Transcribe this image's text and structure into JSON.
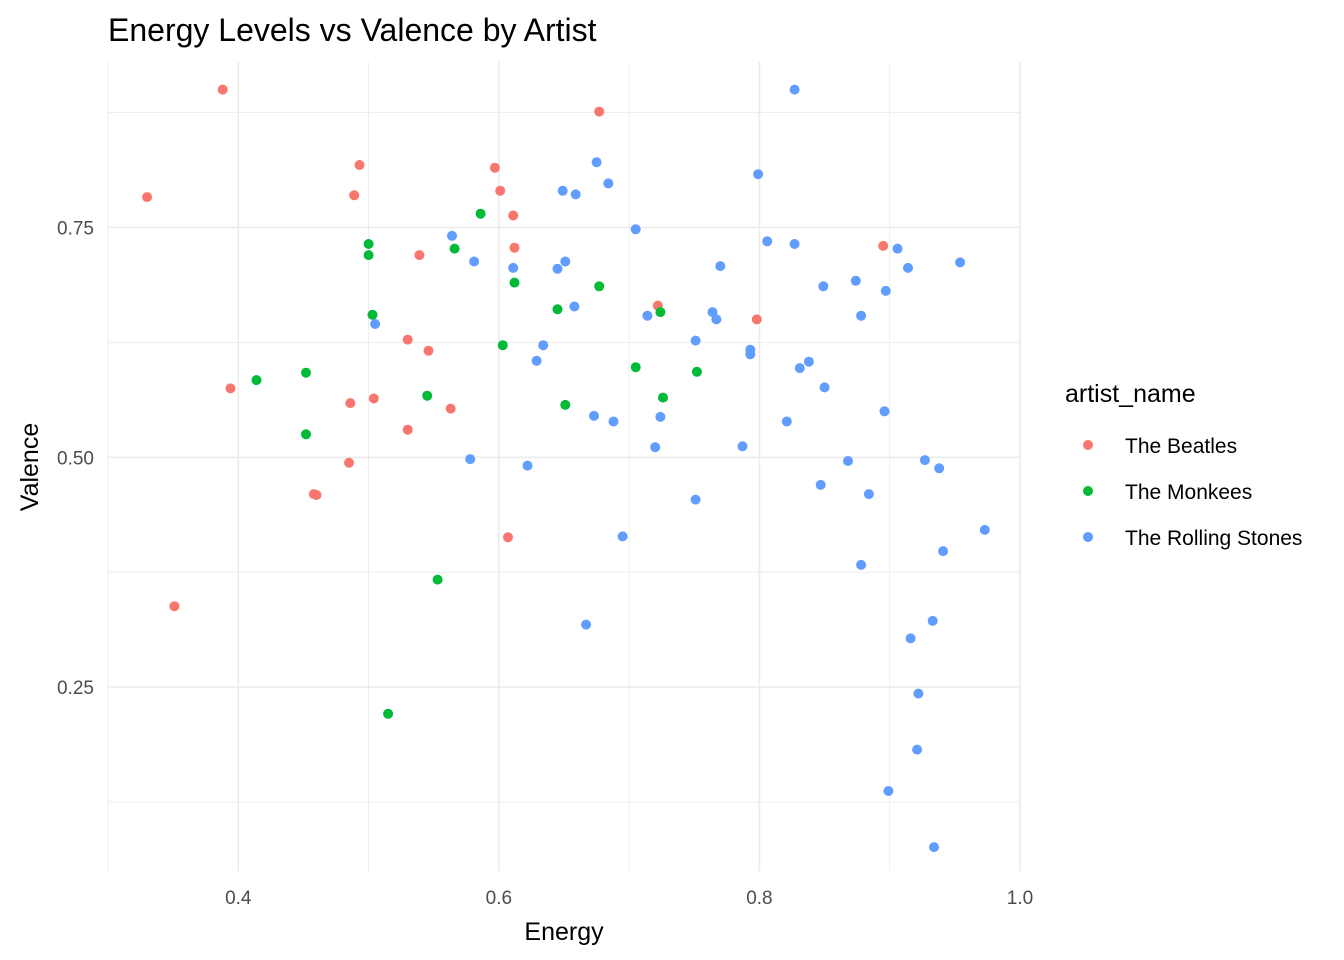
{
  "chart_data": {
    "type": "scatter",
    "title": "Energy Levels vs Valence by Artist",
    "xlabel": "Energy",
    "ylabel": "Valence",
    "xlim": [
      0.3,
      1.0
    ],
    "ylim": [
      0.05,
      0.93
    ],
    "x_ticks": [
      0.4,
      0.6,
      0.8,
      1.0
    ],
    "x_tick_labels": [
      "0.4",
      "0.6",
      "0.8",
      "1.0"
    ],
    "x_minor_ticks": [
      0.3,
      0.5,
      0.7,
      0.9
    ],
    "y_ticks": [
      0.25,
      0.5,
      0.75
    ],
    "y_tick_labels": [
      "0.25",
      "0.50",
      "0.75"
    ],
    "y_minor_ticks": [
      0.125,
      0.375,
      0.625,
      0.875
    ],
    "grid": true,
    "legend": {
      "title": "artist_name",
      "position": "right"
    },
    "series": [
      {
        "name": "The Beatles",
        "color": "#F8766D",
        "points": [
          [
            0.388,
            0.9
          ],
          [
            0.677,
            0.876
          ],
          [
            0.33,
            0.783
          ],
          [
            0.493,
            0.818
          ],
          [
            0.489,
            0.785
          ],
          [
            0.597,
            0.815
          ],
          [
            0.601,
            0.79
          ],
          [
            0.611,
            0.763
          ],
          [
            0.612,
            0.728
          ],
          [
            0.539,
            0.72
          ],
          [
            0.394,
            0.575
          ],
          [
            0.53,
            0.628
          ],
          [
            0.546,
            0.616
          ],
          [
            0.722,
            0.665
          ],
          [
            0.798,
            0.65
          ],
          [
            0.486,
            0.559
          ],
          [
            0.504,
            0.564
          ],
          [
            0.563,
            0.553
          ],
          [
            0.53,
            0.53
          ],
          [
            0.485,
            0.494
          ],
          [
            0.458,
            0.46
          ],
          [
            0.46,
            0.459
          ],
          [
            0.607,
            0.413
          ],
          [
            0.895,
            0.73
          ],
          [
            0.351,
            0.338
          ]
        ]
      },
      {
        "name": "The Monkees",
        "color": "#00BA38",
        "points": [
          [
            0.586,
            0.765
          ],
          [
            0.5,
            0.732
          ],
          [
            0.5,
            0.72
          ],
          [
            0.566,
            0.727
          ],
          [
            0.612,
            0.69
          ],
          [
            0.677,
            0.686
          ],
          [
            0.503,
            0.655
          ],
          [
            0.645,
            0.661
          ],
          [
            0.724,
            0.658
          ],
          [
            0.603,
            0.622
          ],
          [
            0.414,
            0.584
          ],
          [
            0.452,
            0.592
          ],
          [
            0.705,
            0.598
          ],
          [
            0.752,
            0.593
          ],
          [
            0.545,
            0.567
          ],
          [
            0.726,
            0.565
          ],
          [
            0.651,
            0.557
          ],
          [
            0.452,
            0.525
          ],
          [
            0.553,
            0.367
          ],
          [
            0.515,
            0.221
          ]
        ]
      },
      {
        "name": "The Rolling Stones",
        "color": "#619CFF",
        "points": [
          [
            0.827,
            0.9
          ],
          [
            0.675,
            0.821
          ],
          [
            0.684,
            0.798
          ],
          [
            0.649,
            0.79
          ],
          [
            0.659,
            0.786
          ],
          [
            0.799,
            0.808
          ],
          [
            0.705,
            0.748
          ],
          [
            0.564,
            0.741
          ],
          [
            0.806,
            0.735
          ],
          [
            0.827,
            0.732
          ],
          [
            0.906,
            0.727
          ],
          [
            0.581,
            0.713
          ],
          [
            0.651,
            0.713
          ],
          [
            0.645,
            0.705
          ],
          [
            0.611,
            0.706
          ],
          [
            0.77,
            0.708
          ],
          [
            0.954,
            0.712
          ],
          [
            0.914,
            0.706
          ],
          [
            0.849,
            0.686
          ],
          [
            0.874,
            0.692
          ],
          [
            0.897,
            0.681
          ],
          [
            0.658,
            0.664
          ],
          [
            0.714,
            0.654
          ],
          [
            0.764,
            0.658
          ],
          [
            0.767,
            0.65
          ],
          [
            0.878,
            0.654
          ],
          [
            0.505,
            0.645
          ],
          [
            0.634,
            0.622
          ],
          [
            0.751,
            0.627
          ],
          [
            0.793,
            0.617
          ],
          [
            0.793,
            0.612
          ],
          [
            0.629,
            0.605
          ],
          [
            0.838,
            0.604
          ],
          [
            0.831,
            0.597
          ],
          [
            0.85,
            0.576
          ],
          [
            0.673,
            0.545
          ],
          [
            0.688,
            0.539
          ],
          [
            0.724,
            0.544
          ],
          [
            0.821,
            0.539
          ],
          [
            0.896,
            0.55
          ],
          [
            0.72,
            0.511
          ],
          [
            0.787,
            0.512
          ],
          [
            0.578,
            0.498
          ],
          [
            0.622,
            0.491
          ],
          [
            0.868,
            0.496
          ],
          [
            0.927,
            0.497
          ],
          [
            0.938,
            0.488
          ],
          [
            0.847,
            0.47
          ],
          [
            0.884,
            0.46
          ],
          [
            0.751,
            0.454
          ],
          [
            0.973,
            0.421
          ],
          [
            0.695,
            0.414
          ],
          [
            0.941,
            0.398
          ],
          [
            0.878,
            0.383
          ],
          [
            0.933,
            0.322
          ],
          [
            0.667,
            0.318
          ],
          [
            0.916,
            0.303
          ],
          [
            0.922,
            0.243
          ],
          [
            0.921,
            0.182
          ],
          [
            0.899,
            0.137
          ],
          [
            0.934,
            0.076
          ]
        ]
      }
    ]
  }
}
